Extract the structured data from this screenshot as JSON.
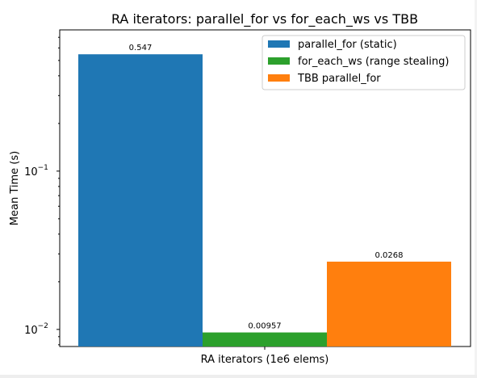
{
  "chart_data": {
    "type": "bar",
    "title": "RA iterators: parallel_for vs for_each_ws vs TBB",
    "xlabel": "RA iterators (1e6 elems)",
    "ylabel": "Mean Time (s)",
    "yscale": "log",
    "ylim": [
      0.0078,
      0.78
    ],
    "y_ticks": [
      {
        "value": 0.01,
        "label": "10",
        "exp": "−2"
      },
      {
        "value": 0.1,
        "label": "10",
        "exp": "−1"
      }
    ],
    "categories": [
      "RA iterators (1e6 elems)"
    ],
    "series": [
      {
        "name": "parallel_for (static)",
        "values": [
          0.547
        ],
        "label": "0.547",
        "color": "#1f77b4"
      },
      {
        "name": "for_each_ws (range stealing)",
        "values": [
          0.00957
        ],
        "label": "0.00957",
        "color": "#2ca02c"
      },
      {
        "name": "TBB parallel_for",
        "values": [
          0.0268
        ],
        "label": "0.0268",
        "color": "#ff7f0e"
      }
    ],
    "legend": {
      "position": "top-right"
    },
    "grid": false
  }
}
